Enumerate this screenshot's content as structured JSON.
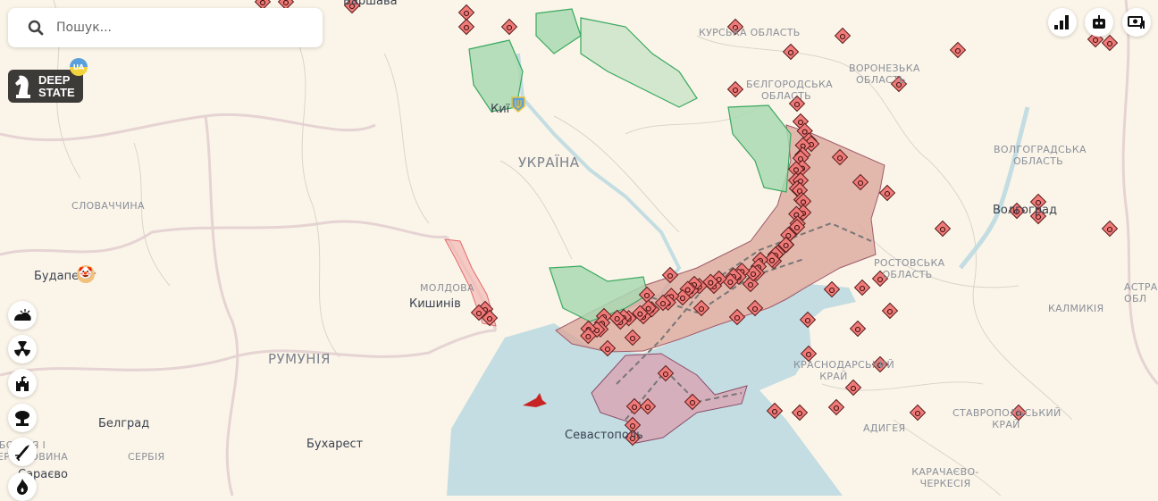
{
  "search": {
    "placeholder": "Пошук..."
  },
  "logo": {
    "line1": "DEEP",
    "line2": "STATE",
    "badge": "UA"
  },
  "top_right_buttons": [
    {
      "icon": "bar-chart-icon"
    },
    {
      "icon": "robot-icon"
    },
    {
      "icon": "money-icon"
    }
  ],
  "left_buttons": [
    {
      "icon": "weather-icon"
    },
    {
      "icon": "radiation-icon"
    },
    {
      "icon": "castle-icon"
    },
    {
      "icon": "explosion-icon"
    },
    {
      "icon": "missile-icon"
    },
    {
      "icon": "fire-icon"
    }
  ],
  "map": {
    "cities": [
      "Варшава",
      "Киї",
      "Будапешт",
      "Кишинів",
      "Белград",
      "Бухарест",
      "Сараєво",
      "Севастополь",
      "Волгоград"
    ],
    "countries": [
      "УКРАЇНА",
      "РУМУНІЯ"
    ],
    "regions": [
      "КУРСЬКА ОБЛАСТЬ",
      "ВОРОНЕЗЬКА ОБЛАСТЬ",
      "БЄЛГОРОДСЬКА ОБЛАСТЬ",
      "ВОЛГОГРАДСЬКА ОБЛАСТЬ",
      "РОСТОВСЬКА ОБЛАСТЬ",
      "КАЛМИКІЯ",
      "АСТРАХ ОБЛ",
      "КРАСНОДАРСЬКИЙ КРАЙ",
      "СТАВРОПОЛЬСЬКИЙ КРАЙ",
      "АДИГЕЯ",
      "КАРАЧАЄВО-ЧЕРКЕСІЯ",
      "СЛОВАЧЧИНА",
      "МОЛДОВА",
      "СЕРБІЯ",
      "БОСНІЯ І ГЕРЦЕГОВИНА"
    ],
    "colors": {
      "land": "#fbf5e9",
      "sea": "#c3dde2",
      "occupied": "#dca89c",
      "crimea": "#d8aab8",
      "liberated": "#a9d9b2",
      "marker": "#f07a78"
    }
  }
}
